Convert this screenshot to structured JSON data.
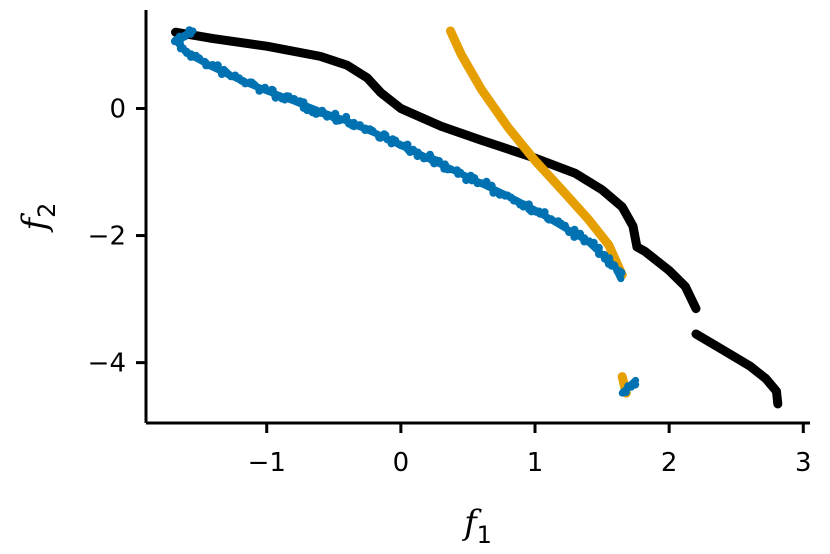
{
  "chart_data": {
    "type": "scatter",
    "title": "",
    "xlabel": "f1",
    "ylabel": "f2",
    "xlabel_base": "f",
    "xlabel_sub": "1",
    "ylabel_base": "f",
    "ylabel_sub": "2",
    "xlim": [
      -1.9,
      3.05
    ],
    "ylim": [
      -4.95,
      1.55
    ],
    "xticks": [
      -1,
      0,
      1,
      2,
      3
    ],
    "xtick_labels": [
      "−1",
      "0",
      "1",
      "2",
      "3"
    ],
    "yticks": [
      -4,
      -2,
      0
    ],
    "ytick_labels": [
      "−4",
      "−2",
      "0"
    ],
    "grid": false,
    "legend": "none",
    "series": [
      {
        "color": "#000000",
        "style": "thick-line",
        "segments": [
          [
            [
              -1.68,
              1.2
            ],
            [
              -1.4,
              1.1
            ],
            [
              -1.0,
              0.98
            ],
            [
              -0.6,
              0.82
            ],
            [
              -0.4,
              0.68
            ],
            [
              -0.25,
              0.48
            ],
            [
              -0.15,
              0.25
            ],
            [
              0.0,
              0.0
            ],
            [
              0.3,
              -0.28
            ],
            [
              0.6,
              -0.5
            ],
            [
              1.0,
              -0.78
            ],
            [
              1.3,
              -1.02
            ],
            [
              1.5,
              -1.28
            ],
            [
              1.65,
              -1.55
            ],
            [
              1.73,
              -1.85
            ],
            [
              1.76,
              -2.18
            ],
            [
              1.82,
              -2.25
            ],
            [
              2.0,
              -2.55
            ],
            [
              2.12,
              -2.8
            ],
            [
              2.2,
              -3.15
            ]
          ],
          [
            [
              2.2,
              -3.55
            ],
            [
              2.4,
              -3.8
            ],
            [
              2.6,
              -4.05
            ],
            [
              2.72,
              -4.25
            ],
            [
              2.8,
              -4.45
            ],
            [
              2.81,
              -4.65
            ]
          ]
        ]
      },
      {
        "color": "#E69F00",
        "style": "thick-line",
        "segments": [
          [
            [
              0.37,
              1.22
            ],
            [
              0.45,
              0.85
            ],
            [
              0.6,
              0.3
            ],
            [
              0.8,
              -0.3
            ],
            [
              1.0,
              -0.82
            ],
            [
              1.2,
              -1.28
            ],
            [
              1.4,
              -1.75
            ],
            [
              1.55,
              -2.15
            ],
            [
              1.65,
              -2.62
            ]
          ],
          [
            [
              1.65,
              -4.22
            ],
            [
              1.68,
              -4.48
            ]
          ]
        ]
      },
      {
        "color": "#0072B2",
        "style": "noisy-markers",
        "segments": [
          [
            [
              -1.55,
              1.22
            ],
            [
              -1.68,
              1.08
            ],
            [
              -1.6,
              0.88
            ],
            [
              -1.4,
              0.65
            ],
            [
              -1.2,
              0.45
            ],
            [
              -1.0,
              0.28
            ],
            [
              -0.8,
              0.12
            ],
            [
              -0.6,
              -0.05
            ],
            [
              -0.4,
              -0.2
            ],
            [
              -0.2,
              -0.38
            ],
            [
              0.0,
              -0.58
            ],
            [
              0.2,
              -0.78
            ],
            [
              0.4,
              -0.98
            ],
            [
              0.6,
              -1.18
            ],
            [
              0.8,
              -1.38
            ],
            [
              1.0,
              -1.6
            ],
            [
              1.2,
              -1.85
            ],
            [
              1.4,
              -2.1
            ],
            [
              1.6,
              -2.5
            ],
            [
              1.64,
              -2.68
            ]
          ],
          [
            [
              1.65,
              -4.48
            ],
            [
              1.75,
              -4.28
            ]
          ]
        ]
      }
    ]
  }
}
